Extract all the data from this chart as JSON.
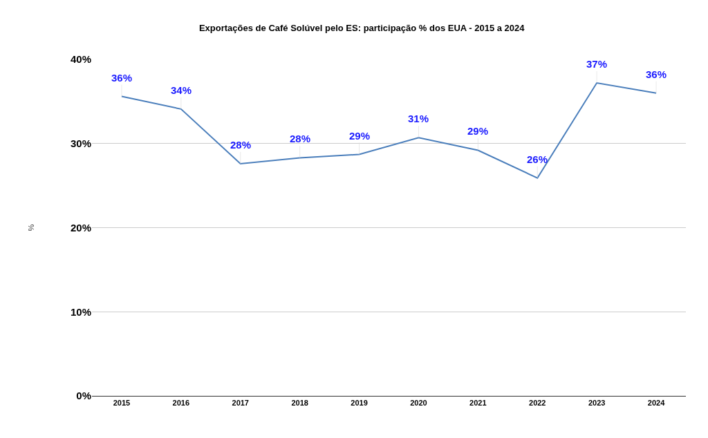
{
  "chart_data": {
    "type": "line",
    "title": "Exportações de Café Solúvel pelo ES: participação % dos EUA - 2015 a 2024",
    "ylabel": "%",
    "categories": [
      "2015",
      "2016",
      "2017",
      "2018",
      "2019",
      "2020",
      "2021",
      "2022",
      "2023",
      "2024"
    ],
    "series": [
      {
        "color": "#4a7ebb",
        "values": [
          35.6,
          34.1,
          27.6,
          28.3,
          28.7,
          30.7,
          29.2,
          25.9,
          37.2,
          36.0
        ],
        "value_labels": [
          "36%",
          "34%",
          "28%",
          "28%",
          "29%",
          "31%",
          "29%",
          "26%",
          "37%",
          "36%"
        ]
      }
    ],
    "ylim": [
      0,
      40
    ],
    "yticks": [
      {
        "value": 0,
        "label": "0%"
      },
      {
        "value": 10,
        "label": "10%"
      },
      {
        "value": 20,
        "label": "20%"
      },
      {
        "value": 30,
        "label": "30%"
      },
      {
        "value": 40,
        "label": "40%"
      }
    ],
    "grid": "y"
  }
}
